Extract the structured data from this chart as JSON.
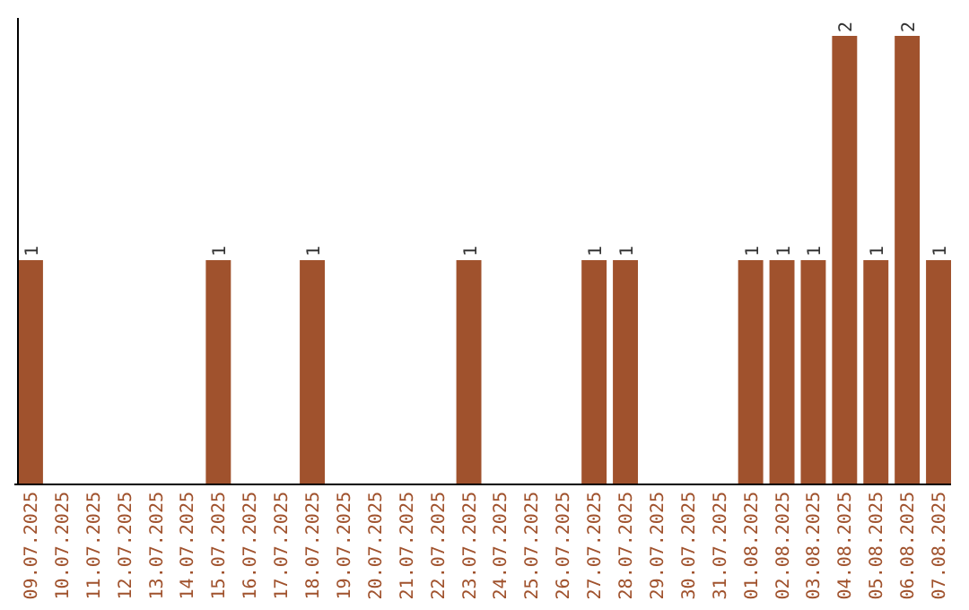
{
  "chart_data": {
    "type": "bar",
    "categories": [
      "09.07.2025",
      "10.07.2025",
      "11.07.2025",
      "12.07.2025",
      "13.07.2025",
      "14.07.2025",
      "15.07.2025",
      "16.07.2025",
      "17.07.2025",
      "18.07.2025",
      "19.07.2025",
      "20.07.2025",
      "21.07.2025",
      "22.07.2025",
      "23.07.2025",
      "24.07.2025",
      "25.07.2025",
      "26.07.2025",
      "27.07.2025",
      "28.07.2025",
      "29.07.2025",
      "30.07.2025",
      "31.07.2025",
      "01.08.2025",
      "02.08.2025",
      "03.08.2025",
      "04.08.2025",
      "05.08.2025",
      "06.08.2025",
      "07.08.2025"
    ],
    "values": [
      1,
      0,
      0,
      0,
      0,
      0,
      1,
      0,
      0,
      1,
      0,
      0,
      0,
      0,
      1,
      0,
      0,
      0,
      1,
      1,
      0,
      0,
      0,
      1,
      1,
      1,
      2,
      1,
      2,
      1
    ],
    "value_labels": [
      "1",
      null,
      null,
      null,
      null,
      null,
      "1",
      null,
      null,
      "1",
      null,
      null,
      null,
      null,
      "1",
      null,
      null,
      null,
      "1",
      "1",
      null,
      null,
      null,
      "1",
      "1",
      "1",
      "2",
      "1",
      "2",
      "1"
    ],
    "color": "#a0522d",
    "ylim": [
      0,
      2
    ],
    "tick_labels": "x"
  }
}
